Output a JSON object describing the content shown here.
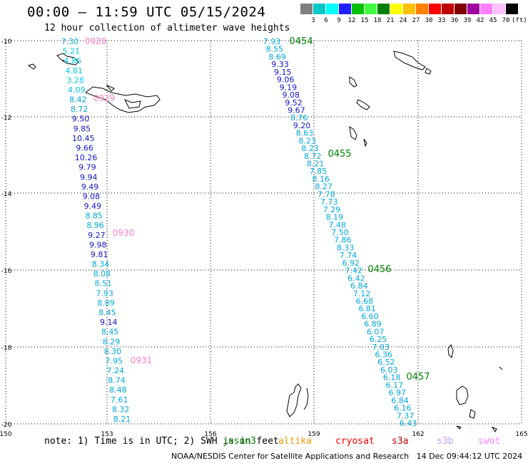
{
  "header": {
    "title": "00:00 — 11:59 UTC 05/15/2024",
    "subtitle": "12 hour collection of altimeter wave heights"
  },
  "legend": {
    "labels": [
      "3",
      "6",
      "9",
      "12",
      "15",
      "18",
      "21",
      "24",
      "27",
      "30",
      "33",
      "36",
      "39",
      "42",
      "45",
      "70",
      "(ft)"
    ],
    "colors": [
      "#808080",
      "#00c8c8",
      "#00ffff",
      "#1e1eff",
      "#00c000",
      "#40ff40",
      "#008000",
      "#ffff00",
      "#ffc000",
      "#ff8000",
      "#ff0000",
      "#c00000",
      "#800000",
      "#a000a0",
      "#ff80ff",
      "#ffc0ff",
      "#000000"
    ]
  },
  "map": {
    "x_ticks": [
      "150",
      "153",
      "156",
      "159",
      "162",
      "165"
    ],
    "y_ticks": [
      "-10",
      "-12",
      "-14",
      "-16",
      "-18",
      "-20"
    ],
    "track_west": {
      "times": [
        {
          "label": "0928",
          "color": "#ff80c0"
        },
        {
          "label": "0929",
          "color": "#ff80c0"
        },
        {
          "label": "0930",
          "color": "#ff80c0"
        },
        {
          "label": "0931",
          "color": "#ff80c0"
        }
      ],
      "values": [
        "7.30",
        "5.21",
        "4.86",
        "4.81",
        "3.28",
        "4.09",
        "8.42",
        "8.72",
        "9.50",
        "9.85",
        "10.45",
        "9.66",
        "10.26",
        "9.79",
        "9.94",
        "9.49",
        "9.08",
        "9.49",
        "8.85",
        "8.96",
        "9.27",
        "9.98",
        "9.81",
        "8.34",
        "8.08",
        "8.51",
        "7.93",
        "8.89",
        "8.45",
        "9.14",
        "8.45",
        "8.29",
        "8.30",
        "7.95",
        "7.24",
        "8.74",
        "8.48",
        "7.61",
        "8.32",
        "8.21"
      ]
    },
    "track_east": {
      "times": [
        {
          "label": "0454",
          "color": "#008000"
        },
        {
          "label": "0455",
          "color": "#008000"
        },
        {
          "label": "0456",
          "color": "#008000"
        },
        {
          "label": "0457",
          "color": "#008000"
        }
      ],
      "values": [
        "7.93",
        "8.55",
        "8.69",
        "9.33",
        "9.15",
        "9.06",
        "9.19",
        "9.08",
        "9.52",
        "9.67",
        "8.76",
        "9.20",
        "8.63",
        "8.23",
        "8.23",
        "8.72",
        "8.21",
        "7.85",
        "8.16",
        "8.27",
        "7.78",
        "7.73",
        "7.29",
        "8.19",
        "7.48",
        "7.50",
        "7.86",
        "8.33",
        "7.74",
        "6.92",
        "7.42",
        "6.42",
        "6.84",
        "7.12",
        "6.68",
        "6.81",
        "6.60",
        "6.89",
        "6.07",
        "6.25",
        "7.03",
        "6.36",
        "6.52",
        "6.03",
        "6.18",
        "6.17",
        "6.97",
        "6.84",
        "6.16",
        "7.37",
        "6.43"
      ]
    }
  },
  "footer": {
    "note": "note: 1) Time is in UTC; 2) SWH is in feet",
    "satellites": [
      {
        "name": "jason3",
        "color": "#008000"
      },
      {
        "name": "altika",
        "color": "#ff9900"
      },
      {
        "name": "cryosat",
        "color": "#ff0000"
      },
      {
        "name": "s3a",
        "color": "#c00000"
      },
      {
        "name": "s3b",
        "color": "#c0a0ff"
      },
      {
        "name": "swot",
        "color": "#ff80ff"
      }
    ],
    "credit": "NOAA/NESDIS Center for Satellite Applications and Research",
    "timestamp": "14 Dec 09:44:12 UTC 2024"
  }
}
